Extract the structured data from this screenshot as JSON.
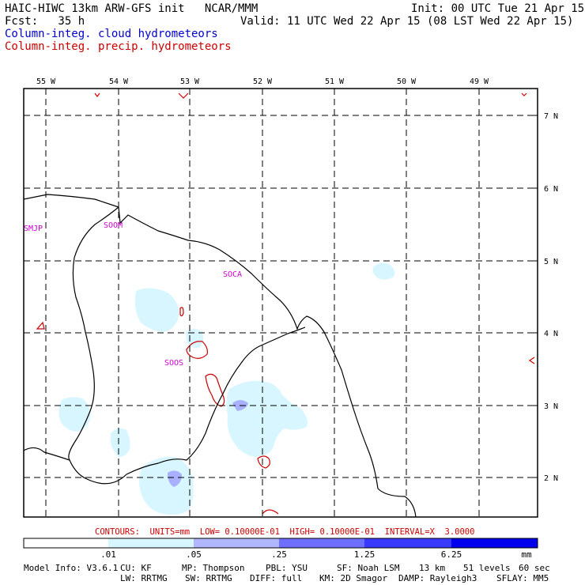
{
  "header": {
    "title": "HAIC-HIWC 13km ARW-GFS init   NCAR/MMM",
    "init": "Init: 00 UTC Tue 21 Apr 15",
    "fcst": "Fcst:   35 h",
    "valid": "Valid: 11 UTC Wed 22 Apr 15 (08 LST Wed 22 Apr 15)",
    "field1": "Column-integ. cloud hydrometeors",
    "field2": "Column-integ. precip. hydrometeors"
  },
  "colors": {
    "field1": "#0000cc",
    "field2": "#cc0000",
    "station_labels": "#cc00cc"
  },
  "map": {
    "lon_labels": [
      "55 W",
      "54 W",
      "53 W",
      "52 W",
      "51 W",
      "50 W",
      "49 W"
    ],
    "lat_labels": [
      "7 N",
      "6 N",
      "5 N",
      "4 N",
      "3 N",
      "2 N"
    ],
    "stations": [
      "SMJP",
      "SOOM",
      "SOCA",
      "SOOS"
    ]
  },
  "contours_text": "CONTOURS:  UNITS=mm  LOW= 0.10000E-01  HIGH= 0.10000E-01  INTERVAL=X  3.0000",
  "colorbar": {
    "ticks": [
      ".01",
      ".05",
      ".25",
      "1.25",
      "6.25"
    ],
    "units": "mm",
    "colors": [
      "#ffffff",
      "#d8f6ff",
      "#b0b6ff",
      "#6e6eff",
      "#3a3aff",
      "#0000ee"
    ]
  },
  "model_info": {
    "line1": [
      "Model Info: V3.6.1",
      "CU: KF",
      "MP: Thompson",
      "PBL: YSU",
      "SF: Noah LSM",
      "13 km",
      "51 levels",
      "60 sec"
    ],
    "line2": [
      "LW: RRTMG",
      "SW: RRTMG",
      "DIFF: full",
      "KM: 2D Smagor",
      "DAMP: Rayleigh3",
      "SFLAY: MM5"
    ]
  }
}
